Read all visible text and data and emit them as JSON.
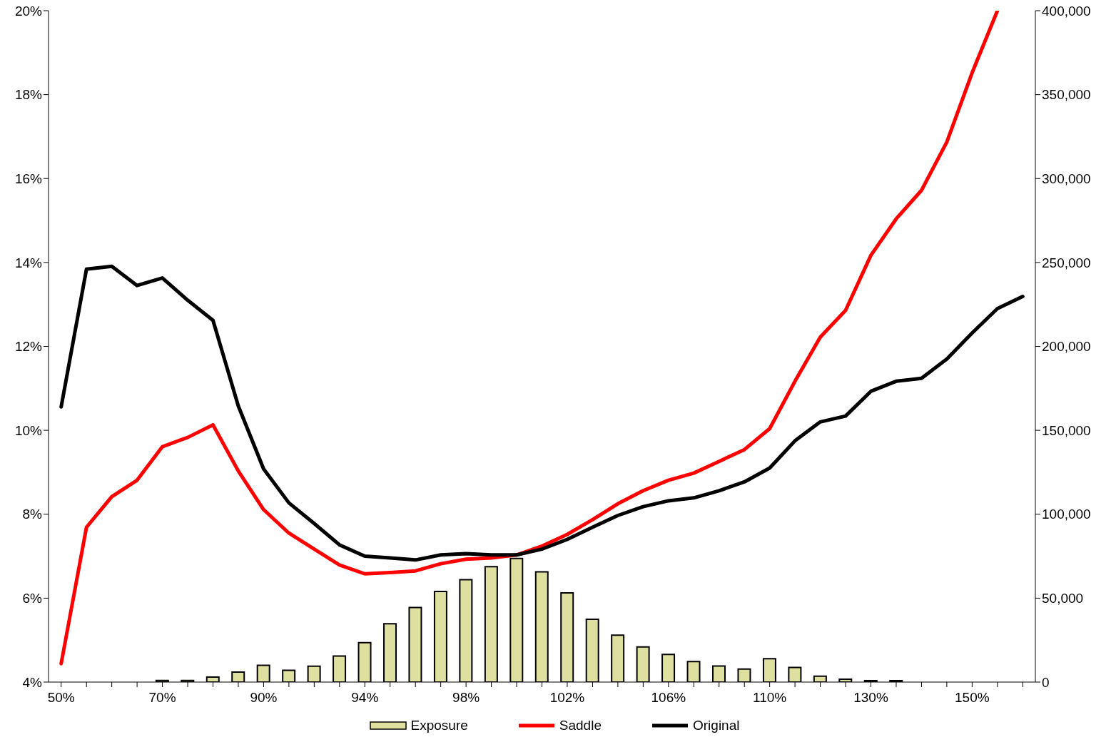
{
  "chart_data": {
    "type": "line",
    "categories": [
      "50%",
      null,
      null,
      null,
      "70%",
      null,
      null,
      null,
      "90%",
      null,
      null,
      null,
      "94%",
      null,
      null,
      null,
      "98%",
      null,
      null,
      null,
      "102%",
      null,
      null,
      null,
      "106%",
      null,
      null,
      null,
      "110%",
      null,
      null,
      null,
      "130%",
      null,
      null,
      null,
      "150%",
      null,
      null
    ],
    "series": [
      {
        "name": "Exposure",
        "type": "bar",
        "axis": "y2",
        "color": "#dde09e",
        "values": [
          null,
          null,
          null,
          null,
          1000,
          1000,
          3000,
          6000,
          10000,
          7000,
          9500,
          15500,
          23500,
          34800,
          44400,
          54000,
          61000,
          68800,
          73600,
          65700,
          53100,
          37400,
          27900,
          20900,
          16500,
          12200,
          9600,
          7800,
          13900,
          8700,
          3500,
          1700,
          900,
          900,
          null,
          null,
          null,
          null,
          null
        ]
      },
      {
        "name": "Saddle",
        "color": "#ff0000",
        "values": [
          4.44,
          7.69,
          8.42,
          8.81,
          9.61,
          9.83,
          10.13,
          9.03,
          8.11,
          7.55,
          7.17,
          6.79,
          6.58,
          6.61,
          6.65,
          6.82,
          6.93,
          6.96,
          7.03,
          7.24,
          7.52,
          7.87,
          8.25,
          8.56,
          8.81,
          8.98,
          9.26,
          9.54,
          10.04,
          11.17,
          12.22,
          12.86,
          14.17,
          15.04,
          15.72,
          16.87,
          18.52,
          20.0,
          null
        ]
      },
      {
        "name": "Original",
        "color": "#000000",
        "values": [
          10.56,
          13.84,
          13.91,
          13.45,
          13.63,
          13.1,
          12.62,
          10.58,
          9.08,
          8.27,
          7.78,
          7.27,
          7.0,
          6.96,
          6.91,
          7.03,
          7.06,
          7.03,
          7.03,
          7.17,
          7.4,
          7.69,
          7.97,
          8.18,
          8.32,
          8.39,
          8.56,
          8.77,
          9.1,
          9.75,
          10.2,
          10.34,
          10.93,
          11.17,
          11.24,
          11.7,
          12.32,
          12.9,
          13.19
        ]
      }
    ],
    "ylim": [
      4,
      20
    ],
    "yticks": [
      {
        "value": 4,
        "label": "4%"
      },
      {
        "value": 6,
        "label": "6%"
      },
      {
        "value": 8,
        "label": "8%"
      },
      {
        "value": 10,
        "label": "10%"
      },
      {
        "value": 12,
        "label": "12%"
      },
      {
        "value": 14,
        "label": "14%"
      },
      {
        "value": 16,
        "label": "16%"
      },
      {
        "value": 18,
        "label": "18%"
      },
      {
        "value": 20,
        "label": "20%"
      }
    ],
    "y2lim": [
      0,
      400000
    ],
    "y2ticks": [
      0,
      {
        "value": 50000,
        "label": "50,000"
      },
      {
        "value": 100000,
        "label": "100,000"
      },
      {
        "value": 150000,
        "label": "150,000"
      },
      {
        "value": 200000,
        "label": "200,000"
      },
      {
        "value": 250000,
        "label": "250,000"
      },
      {
        "value": 300000,
        "label": "300,000"
      },
      {
        "value": 350000,
        "label": "350,000"
      },
      {
        "value": 400000,
        "label": "400,000"
      }
    ],
    "grid": false,
    "legend": "bottom",
    "marker": "none",
    "line_style": "solid"
  }
}
